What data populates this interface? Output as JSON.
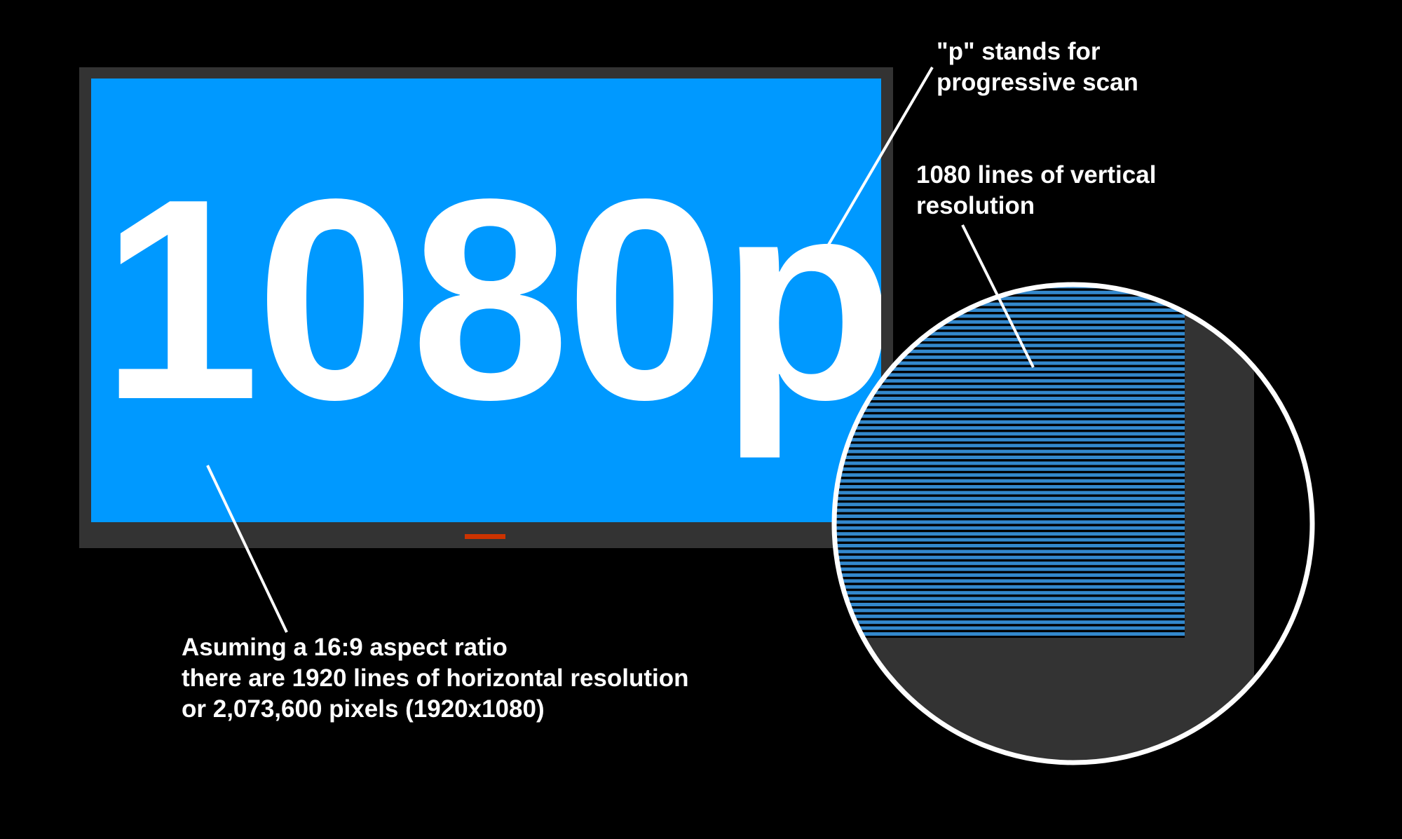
{
  "display": {
    "title": "1080p",
    "screen_color": "#0099FF",
    "frame_color": "#333333",
    "indicator_color": "#CC3300"
  },
  "annotations": {
    "progressive": {
      "lines": [
        "\"p\" stands for",
        "progressive scan"
      ]
    },
    "vertical": {
      "lines": [
        "1080 lines of vertical",
        "resolution"
      ]
    },
    "horizontal": {
      "lines": [
        "Asuming a 16:9 aspect ratio",
        "there are 1920 lines of horizontal resolution",
        "or 2,073,600 pixels (1920x1080)"
      ]
    }
  },
  "magnifier": {
    "scanline_color": "#3388CC",
    "ring_color": "#FFFFFF"
  }
}
